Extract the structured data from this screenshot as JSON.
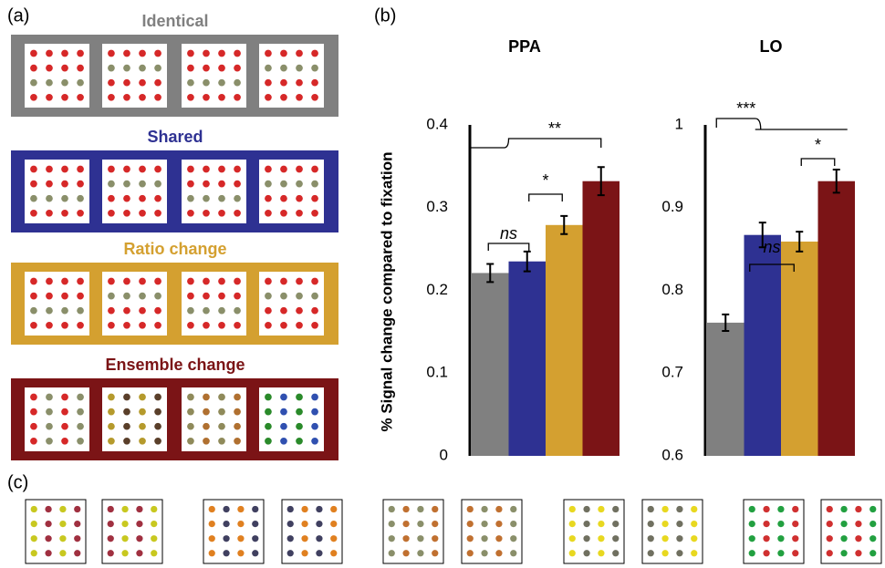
{
  "panels": {
    "a": "(a)",
    "b": "(b)",
    "c": "(c)"
  },
  "conditions": [
    {
      "name": "Identical",
      "color": "#808080"
    },
    {
      "name": "Shared",
      "color": "#2e3192"
    },
    {
      "name": "Ratio change",
      "color": "#d4a030"
    },
    {
      "name": "Ensemble change",
      "color": "#7b1416"
    }
  ],
  "chart_data": [
    {
      "type": "bar",
      "title": "PPA",
      "ylabel": "% Signal change compared to fixation",
      "categories": [
        null,
        null,
        null,
        null
      ],
      "values": [
        0.221,
        0.235,
        0.279,
        0.332
      ],
      "errors": [
        0.011,
        0.012,
        0.011,
        0.017
      ],
      "colors": [
        "#808080",
        "#2e3192",
        "#d4a030",
        "#7b1416"
      ],
      "ylim": [
        0,
        0.4
      ],
      "yticks": [
        0,
        0.1,
        0.2,
        0.3,
        0.4
      ],
      "annotations": [
        "**",
        "*",
        "ns"
      ]
    },
    {
      "type": "bar",
      "title": "LO",
      "categories": [
        null,
        null,
        null,
        null
      ],
      "values": [
        0.761,
        0.867,
        0.859,
        0.932
      ],
      "errors": [
        0.01,
        0.015,
        0.012,
        0.014
      ],
      "colors": [
        "#808080",
        "#2e3192",
        "#d4a030",
        "#7b1416"
      ],
      "ylim": [
        0.6,
        1
      ],
      "yticks": [
        0.6,
        0.7,
        0.8,
        0.9,
        1
      ],
      "annotations": [
        "***",
        "*",
        "ns"
      ]
    }
  ]
}
